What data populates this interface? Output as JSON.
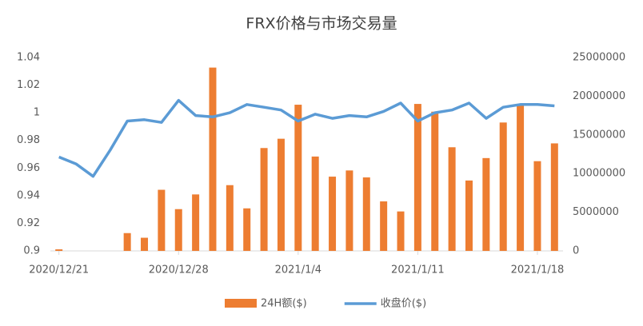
{
  "chart_data": {
    "type": "bar-line",
    "title": "FRX价格与市场交易量",
    "categories": [
      "2020/12/21",
      null,
      null,
      null,
      null,
      null,
      null,
      "2020/12/28",
      null,
      null,
      null,
      null,
      null,
      null,
      "2021/1/4",
      null,
      null,
      null,
      null,
      null,
      null,
      "2021/1/11",
      null,
      null,
      null,
      null,
      null,
      null,
      "2021/1/18",
      null
    ],
    "series": [
      {
        "name": "24H额($)",
        "color": "#ed7d31",
        "type": "bar",
        "axis": "y2",
        "values": [
          200000,
          0,
          0,
          0,
          2300000,
          1700000,
          7900000,
          5400000,
          7300000,
          23700000,
          8500000,
          5500000,
          13300000,
          14500000,
          18900000,
          12200000,
          9600000,
          10400000,
          9500000,
          6400000,
          5100000,
          19000000,
          18000000,
          13400000,
          9100000,
          12000000,
          16600000,
          19000000,
          11600000,
          13900000
        ]
      },
      {
        "name": "收盘价($)",
        "color": "#5b9bd5",
        "type": "line",
        "values": [
          0.968,
          0.963,
          0.954,
          0.973,
          0.994,
          0.995,
          0.993,
          1.009,
          0.998,
          0.997,
          1.0,
          1.006,
          1.004,
          1.002,
          0.994,
          0.999,
          0.996,
          0.998,
          0.997,
          1.001,
          1.007,
          0.994,
          1.0,
          1.002,
          1.007,
          0.996,
          1.004,
          1.006,
          1.006,
          1.005
        ]
      }
    ],
    "ylim": [
      0.9,
      1.04
    ],
    "yticks": [
      0.9,
      0.92,
      0.94,
      0.96,
      0.98,
      1,
      1.02,
      1.04
    ],
    "y2lim": [
      0,
      25000000
    ],
    "y2ticks": [
      0,
      5000000,
      10000000,
      15000000,
      20000000,
      25000000
    ],
    "legend": "bottom"
  }
}
